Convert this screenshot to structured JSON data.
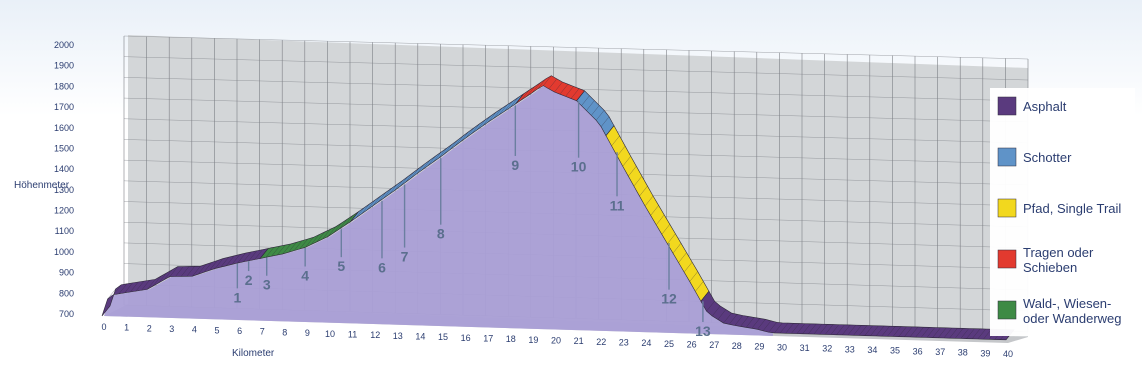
{
  "chart_data": {
    "type": "area",
    "ylabel": "Höhenmeter",
    "xlabel": "Kilometer",
    "ylim": [
      700,
      2000
    ],
    "xlim": [
      0,
      40
    ],
    "yticks": [
      700,
      800,
      900,
      1000,
      1100,
      1200,
      1300,
      1400,
      1500,
      1600,
      1700,
      1800,
      1900,
      2000
    ],
    "xticks": [
      0,
      1,
      2,
      3,
      4,
      5,
      6,
      7,
      8,
      9,
      10,
      11,
      12,
      13,
      14,
      15,
      16,
      17,
      18,
      19,
      20,
      21,
      22,
      23,
      24,
      25,
      26,
      27,
      28,
      29,
      30,
      31,
      32,
      33,
      34,
      35,
      36,
      37,
      38,
      39,
      40
    ],
    "grid": true,
    "legend_position": "right",
    "profile": {
      "x": [
        0,
        0.3,
        1,
        2,
        3,
        4,
        5,
        6,
        7,
        8,
        9,
        10,
        11,
        12,
        13,
        14,
        15,
        16,
        17,
        18,
        19,
        19.5,
        20,
        21,
        22,
        23,
        24,
        25,
        26,
        26.8,
        27.5,
        28,
        29,
        29.6
      ],
      "y": [
        700,
        800,
        815,
        835,
        900,
        905,
        945,
        975,
        1000,
        1025,
        1060,
        1115,
        1190,
        1270,
        1350,
        1435,
        1515,
        1600,
        1680,
        1755,
        1830,
        1870,
        1840,
        1800,
        1695,
        1500,
        1310,
        1130,
        950,
        800,
        755,
        745,
        730,
        715
      ]
    },
    "segments": [
      {
        "surface": "asphalt",
        "from": 0,
        "to": 7
      },
      {
        "surface": "wald",
        "from": 7,
        "to": 11
      },
      {
        "surface": "schotter",
        "from": 11,
        "to": 18.3
      },
      {
        "surface": "tragen",
        "from": 18.3,
        "to": 21
      },
      {
        "surface": "schotter",
        "from": 21,
        "to": 22.3
      },
      {
        "surface": "pfad",
        "from": 22.3,
        "to": 26.5
      },
      {
        "surface": "asphalt",
        "from": 26.5,
        "to": 40
      }
    ],
    "markers": [
      {
        "label": "1",
        "x": 5.9,
        "y": 785
      },
      {
        "label": "2",
        "x": 6.4,
        "y": 870
      },
      {
        "label": "3",
        "x": 7.2,
        "y": 850
      },
      {
        "label": "4",
        "x": 8.9,
        "y": 900
      },
      {
        "label": "5",
        "x": 10.5,
        "y": 950
      },
      {
        "label": "6",
        "x": 12.3,
        "y": 950
      },
      {
        "label": "7",
        "x": 13.3,
        "y": 1005
      },
      {
        "label": "8",
        "x": 14.9,
        "y": 1120
      },
      {
        "label": "9",
        "x": 18.2,
        "y": 1460
      },
      {
        "label": "10",
        "x": 21.0,
        "y": 1460
      },
      {
        "label": "11",
        "x": 22.7,
        "y": 1280
      },
      {
        "label": "12",
        "x": 25.0,
        "y": 840
      },
      {
        "label": "13",
        "x": 26.5,
        "y": 690
      }
    ],
    "legend": [
      {
        "key": "asphalt",
        "label": "Asphalt",
        "color": "#5a3a7e"
      },
      {
        "key": "schotter",
        "label": "Schotter",
        "color": "#5f93c8"
      },
      {
        "key": "pfad",
        "label": "Pfad, Single Trail",
        "color": "#f2d81e"
      },
      {
        "key": "tragen",
        "label_lines": [
          "Tragen oder",
          " Schieben"
        ],
        "color": "#e23a2f"
      },
      {
        "key": "wald",
        "label_lines": [
          "Wald-, Wiesen-",
          "oder Wanderweg"
        ],
        "color": "#3e8a45"
      }
    ],
    "colors": {
      "area_fill": "#aa9fd6",
      "back_wall": "#d3d6d8",
      "floor": "#c5c7ca",
      "grid": "#7c7f85",
      "ribbon_border": "#2f2a3a"
    }
  }
}
